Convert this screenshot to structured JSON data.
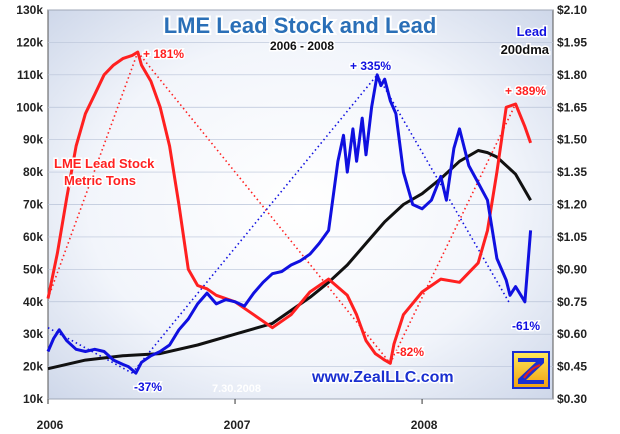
{
  "chart_data": {
    "type": "line",
    "title": "LME Lead Stock and Lead",
    "subtitle": "2006 - 2008",
    "date_stamp": "7.30.2008",
    "website": "www.ZealLLC.com",
    "x_ticks": [
      "2006",
      "2007",
      "2008"
    ],
    "xlim": [
      2006.0,
      2008.7
    ],
    "y_left": {
      "ylim": [
        10000,
        130000
      ],
      "ticks": [
        "10k",
        "20k",
        "30k",
        "40k",
        "50k",
        "60k",
        "70k",
        "80k",
        "90k",
        "100k",
        "110k",
        "120k",
        "130k"
      ]
    },
    "y_right": {
      "ylim": [
        0.3,
        2.1
      ],
      "ticks": [
        "$0.30",
        "$0.45",
        "$0.60",
        "$0.75",
        "$0.90",
        "$1.05",
        "$1.20",
        "$1.35",
        "$1.50",
        "$1.65",
        "$1.80",
        "$1.95",
        "$2.10"
      ]
    },
    "series": [
      {
        "name": "LME Lead Stock Metric Tons",
        "axis": "left",
        "color": "#ff2020",
        "x": [
          2006.0,
          2006.05,
          2006.1,
          2006.15,
          2006.2,
          2006.25,
          2006.3,
          2006.35,
          2006.4,
          2006.45,
          2006.48,
          2006.5,
          2006.55,
          2006.6,
          2006.65,
          2006.7,
          2006.75,
          2006.8,
          2006.85,
          2006.9,
          2007.0,
          2007.1,
          2007.2,
          2007.3,
          2007.4,
          2007.5,
          2007.6,
          2007.65,
          2007.7,
          2007.75,
          2007.8,
          2007.83,
          2007.85,
          2007.9,
          2008.0,
          2008.1,
          2008.2,
          2008.3,
          2008.35,
          2008.4,
          2008.45,
          2008.5,
          2008.55,
          2008.58
        ],
        "values": [
          41000,
          55000,
          72000,
          88000,
          98000,
          104000,
          110000,
          113000,
          115000,
          116000,
          117000,
          113000,
          108000,
          100000,
          88000,
          70000,
          50000,
          45000,
          44000,
          42000,
          40000,
          36000,
          32000,
          36000,
          43000,
          47000,
          42000,
          36000,
          28000,
          24000,
          22000,
          21000,
          27000,
          36000,
          43000,
          47000,
          46000,
          52000,
          62000,
          80000,
          100000,
          101000,
          94000,
          89000
        ]
      },
      {
        "name": "Lead",
        "axis": "right",
        "color": "#1010e0",
        "x": [
          2006.0,
          2006.03,
          2006.06,
          2006.1,
          2006.15,
          2006.2,
          2006.25,
          2006.3,
          2006.35,
          2006.4,
          2006.43,
          2006.47,
          2006.5,
          2006.55,
          2006.6,
          2006.65,
          2006.7,
          2006.75,
          2006.8,
          2006.85,
          2006.9,
          2006.95,
          2007.0,
          2007.05,
          2007.1,
          2007.15,
          2007.2,
          2007.25,
          2007.3,
          2007.35,
          2007.4,
          2007.45,
          2007.5,
          2007.55,
          2007.58,
          2007.6,
          2007.63,
          2007.65,
          2007.68,
          2007.7,
          2007.73,
          2007.76,
          2007.78,
          2007.8,
          2007.83,
          2007.86,
          2007.9,
          2007.95,
          2008.0,
          2008.05,
          2008.1,
          2008.13,
          2008.17,
          2008.2,
          2008.25,
          2008.3,
          2008.35,
          2008.4,
          2008.45,
          2008.47,
          2008.5,
          2008.55,
          2008.58
        ],
        "values": [
          0.52,
          0.58,
          0.62,
          0.57,
          0.53,
          0.52,
          0.53,
          0.52,
          0.48,
          0.46,
          0.45,
          0.42,
          0.47,
          0.5,
          0.52,
          0.55,
          0.62,
          0.67,
          0.74,
          0.79,
          0.74,
          0.76,
          0.75,
          0.73,
          0.79,
          0.84,
          0.88,
          0.89,
          0.92,
          0.94,
          0.97,
          1.02,
          1.08,
          1.4,
          1.52,
          1.35,
          1.55,
          1.4,
          1.6,
          1.43,
          1.65,
          1.8,
          1.75,
          1.78,
          1.68,
          1.62,
          1.35,
          1.2,
          1.18,
          1.22,
          1.33,
          1.22,
          1.46,
          1.55,
          1.38,
          1.3,
          1.22,
          0.95,
          0.85,
          0.78,
          0.82,
          0.75,
          1.08
        ]
      },
      {
        "name": "200dma",
        "axis": "right",
        "color": "#111111",
        "x": [
          2006.0,
          2006.2,
          2006.4,
          2006.6,
          2006.8,
          2007.0,
          2007.2,
          2007.4,
          2007.5,
          2007.6,
          2007.7,
          2007.8,
          2007.9,
          2008.0,
          2008.1,
          2008.2,
          2008.3,
          2008.35,
          2008.4,
          2008.5,
          2008.58
        ],
        "values": [
          0.44,
          0.48,
          0.5,
          0.51,
          0.55,
          0.6,
          0.65,
          0.77,
          0.84,
          0.92,
          1.02,
          1.12,
          1.2,
          1.25,
          1.32,
          1.4,
          1.45,
          1.44,
          1.42,
          1.34,
          1.22
        ]
      }
    ],
    "trend_lines": [
      {
        "color": "#ff2020",
        "axis": "left",
        "from": [
          2006.0,
          41000
        ],
        "to": [
          2006.48,
          117000
        ]
      },
      {
        "color": "#ff2020",
        "axis": "left",
        "from": [
          2006.48,
          117000
        ],
        "to": [
          2007.83,
          21000
        ]
      },
      {
        "color": "#ff2020",
        "axis": "left",
        "from": [
          2007.83,
          21000
        ],
        "to": [
          2008.5,
          101000
        ]
      },
      {
        "color": "#1010e0",
        "axis": "right",
        "from": [
          2006.0,
          0.63
        ],
        "to": [
          2006.45,
          0.42
        ]
      },
      {
        "color": "#1010e0",
        "axis": "right",
        "from": [
          2006.45,
          0.42
        ],
        "to": [
          2007.76,
          1.8
        ]
      },
      {
        "color": "#1010e0",
        "axis": "right",
        "from": [
          2007.76,
          1.8
        ],
        "to": [
          2008.47,
          0.74
        ]
      }
    ],
    "annotations": [
      {
        "text": "+ 181%",
        "color": "#ff2020"
      },
      {
        "text": "+ 335%",
        "color": "#1010e0"
      },
      {
        "text": "+ 389%",
        "color": "#ff2020"
      },
      {
        "text": "-82%",
        "color": "#ff2020"
      },
      {
        "text": "-37%",
        "color": "#1010e0"
      },
      {
        "text": "-61%",
        "color": "#1010e0"
      }
    ],
    "legend": [
      {
        "text": "LME Lead Stock",
        "color": "#ff2020"
      },
      {
        "text": "Metric Tons",
        "color": "#ff2020"
      },
      {
        "text": "Lead",
        "color": "#1010e0"
      },
      {
        "text": "200dma",
        "color": "#111111"
      }
    ],
    "background_colors": {
      "outer": "#ffffff",
      "plot_center": "#ffffff",
      "plot_edge": "#cfd8ea"
    }
  }
}
